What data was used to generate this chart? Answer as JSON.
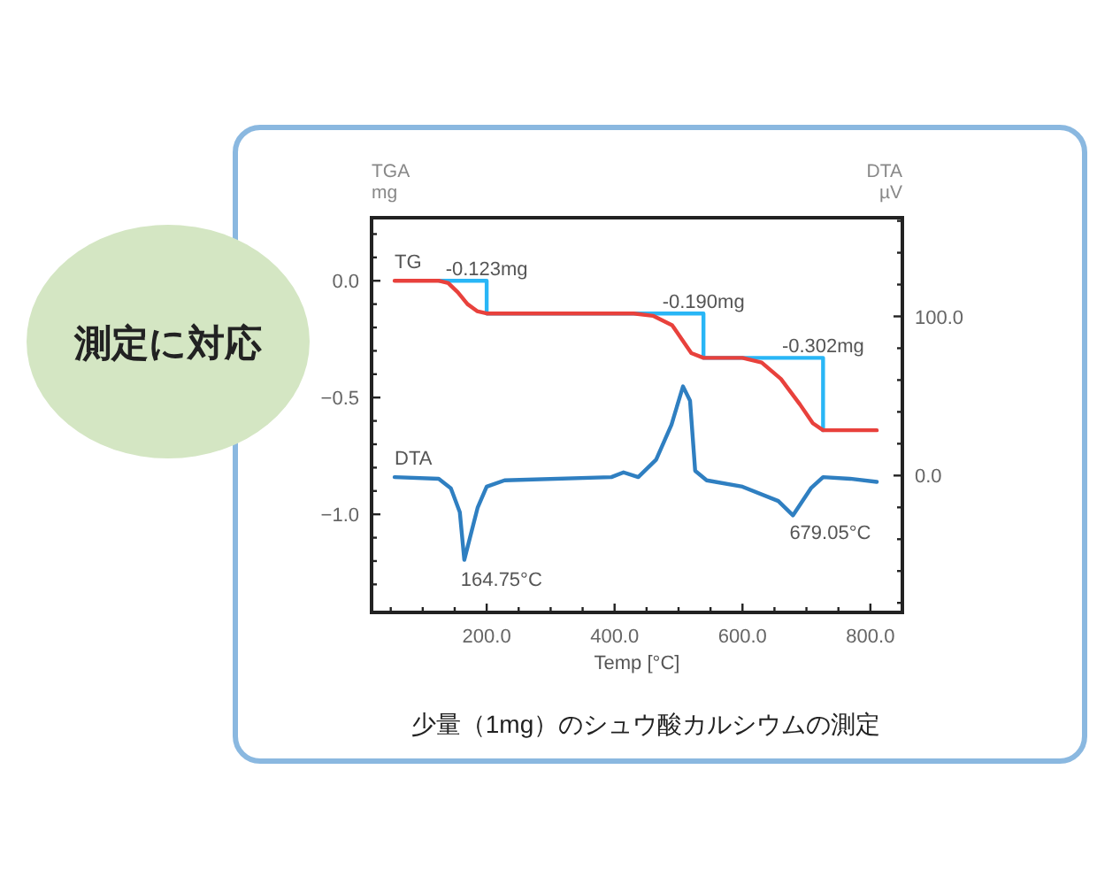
{
  "chart_data": {
    "type": "line",
    "xlabel": "Temp [°C]",
    "ylabel": "TGA\nmg",
    "y2label": "DTA\nµV",
    "xlim": [
      20,
      850
    ],
    "ylim": [
      -1.42,
      0.27
    ],
    "y2lim": [
      -86,
      162
    ],
    "xticks": [
      {
        "value": 50,
        "label": null
      },
      {
        "value": 100,
        "label": null
      },
      {
        "value": 150,
        "label": null
      },
      {
        "value": 200,
        "label": "200.0"
      },
      {
        "value": 250,
        "label": null
      },
      {
        "value": 300,
        "label": null
      },
      {
        "value": 350,
        "label": null
      },
      {
        "value": 400,
        "label": "400.0"
      },
      {
        "value": 450,
        "label": null
      },
      {
        "value": 500,
        "label": null
      },
      {
        "value": 550,
        "label": null
      },
      {
        "value": 600,
        "label": "600.0"
      },
      {
        "value": 650,
        "label": null
      },
      {
        "value": 700,
        "label": null
      },
      {
        "value": 750,
        "label": null
      },
      {
        "value": 800,
        "label": "800.0"
      }
    ],
    "yticks": [
      {
        "value": 0.2,
        "label": null
      },
      {
        "value": 0.1,
        "label": null
      },
      {
        "value": 0,
        "label": "0.0"
      },
      {
        "value": -0.1,
        "label": null
      },
      {
        "value": -0.2,
        "label": null
      },
      {
        "value": -0.3,
        "label": null
      },
      {
        "value": -0.4,
        "label": null
      },
      {
        "value": -0.5,
        "label": "−0.5"
      },
      {
        "value": -0.6,
        "label": null
      },
      {
        "value": -0.7,
        "label": null
      },
      {
        "value": -0.8,
        "label": null
      },
      {
        "value": -0.9,
        "label": null
      },
      {
        "value": -1.0,
        "label": "−1.0"
      },
      {
        "value": -1.1,
        "label": null
      },
      {
        "value": -1.2,
        "label": null
      },
      {
        "value": -1.3,
        "label": null
      }
    ],
    "y2ticks": [
      {
        "value": -80,
        "label": null
      },
      {
        "value": -60,
        "label": null
      },
      {
        "value": -40,
        "label": null
      },
      {
        "value": -20,
        "label": null
      },
      {
        "value": 0,
        "label": "0.0"
      },
      {
        "value": 20,
        "label": null
      },
      {
        "value": 40,
        "label": null
      },
      {
        "value": 60,
        "label": null
      },
      {
        "value": 80,
        "label": null
      },
      {
        "value": 100,
        "label": "100.0"
      },
      {
        "value": 120,
        "label": null
      },
      {
        "value": 140,
        "label": null
      },
      {
        "value": 160,
        "label": null
      }
    ],
    "grid": false,
    "series": [
      {
        "color": "#29b6f6",
        "x": [
          126,
          200,
          200,
          539,
          539,
          726,
          726
        ],
        "values": [
          0,
          0,
          -0.14,
          -0.14,
          -0.33,
          -0.33,
          -0.64
        ]
      },
      {
        "name": "TG",
        "color": "#e8413c",
        "x": [
          56,
          126,
          140,
          155,
          170,
          185,
          200,
          320,
          430,
          460,
          490,
          505,
          520,
          539,
          600,
          630,
          660,
          690,
          710,
          726,
          810
        ],
        "values": [
          0,
          0,
          -0.01,
          -0.05,
          -0.1,
          -0.13,
          -0.14,
          -0.14,
          -0.14,
          -0.15,
          -0.19,
          -0.25,
          -0.31,
          -0.33,
          -0.33,
          -0.35,
          -0.42,
          -0.53,
          -0.61,
          -0.64,
          -0.64
        ]
      },
      {
        "name": "DTA",
        "color": "#2f7fc1",
        "axis": "y2",
        "x": [
          56,
          125,
          144,
          158,
          165,
          186,
          200,
          228,
          395,
          414,
          437,
          465,
          489,
          507,
          518,
          526,
          544,
          600,
          656,
          679,
          707,
          726,
          768,
          810
        ],
        "values": [
          -1,
          -2,
          -8,
          -23,
          -53,
          -20,
          -7,
          -3,
          -1,
          2,
          -1,
          10,
          32,
          56,
          47,
          3,
          -3,
          -7,
          -16,
          -25,
          -8,
          -1,
          -2,
          -4
        ]
      }
    ],
    "annotations": [
      {
        "text": "-0.123mg",
        "x": 200,
        "y": 0
      },
      {
        "text": "-0.190mg",
        "x": 539,
        "y": -0.14
      },
      {
        "text": "-0.302mg",
        "x": 726,
        "y": -0.33
      },
      {
        "text": "164.75°C",
        "x": 165,
        "y": -1.2
      },
      {
        "text": "679.05°C",
        "x": 679,
        "y": -1.0
      },
      "少量（1mg）のシュウ酸カルシウムの測定",
      "測定に対応"
    ]
  }
}
